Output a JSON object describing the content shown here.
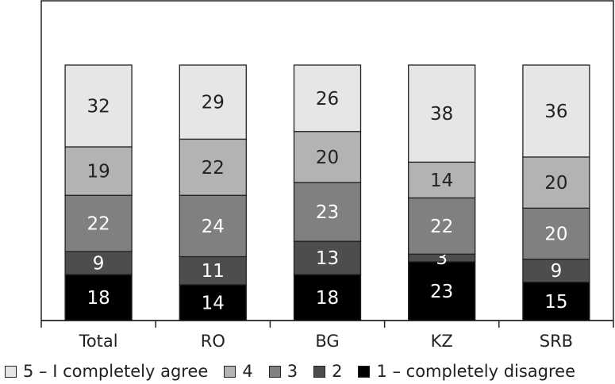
{
  "chart_data": {
    "type": "bar",
    "stacked": true,
    "categories": [
      "Total",
      "RO",
      "BG",
      "KZ",
      "SRB"
    ],
    "series": [
      {
        "name": "1 – completely disagree",
        "color": "#000000",
        "label_color": "#ffffff",
        "values": [
          18,
          14,
          18,
          23,
          15
        ]
      },
      {
        "name": "2",
        "color": "#4d4d4d",
        "label_color": "#ffffff",
        "values": [
          9,
          11,
          13,
          3,
          9
        ]
      },
      {
        "name": "3",
        "color": "#808080",
        "label_color": "#ffffff",
        "values": [
          22,
          24,
          23,
          22,
          20
        ]
      },
      {
        "name": "4",
        "color": "#b3b3b3",
        "label_color": "#222222",
        "values": [
          19,
          22,
          20,
          14,
          20
        ]
      },
      {
        "name": "5 – I completely agree",
        "color": "#e6e6e6",
        "label_color": "#222222",
        "values": [
          32,
          29,
          26,
          38,
          36
        ]
      }
    ],
    "legend_order": [
      4,
      3,
      2,
      1,
      0
    ],
    "legend_position": "bottom",
    "ylim": [
      0,
      100
    ],
    "grid": false,
    "title": "",
    "xlabel": "",
    "ylabel": ""
  }
}
